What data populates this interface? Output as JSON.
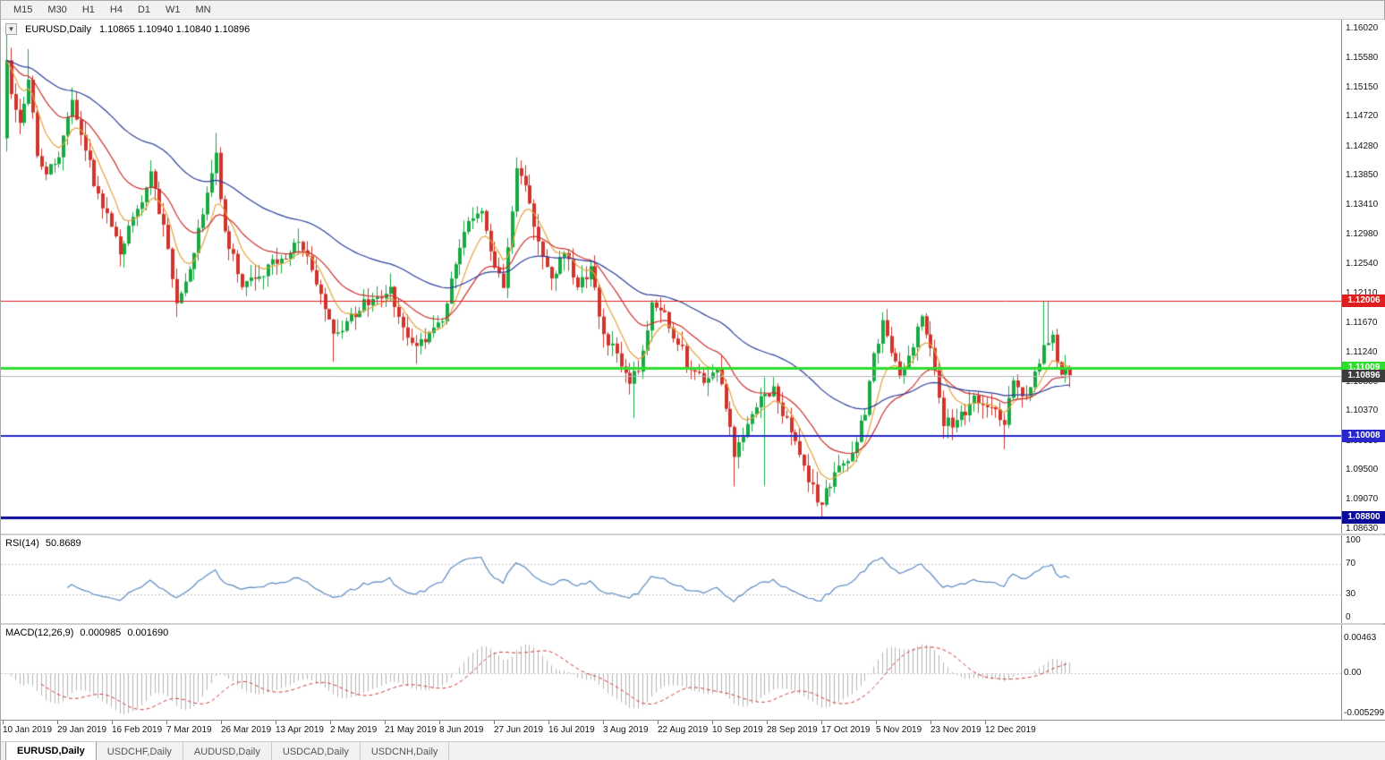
{
  "toolbar": {
    "timeframes": [
      "M15",
      "M30",
      "H1",
      "H4",
      "D1",
      "W1",
      "MN"
    ]
  },
  "chart_title": {
    "symbol": "EURUSD,Daily",
    "ohlc": "1.10865 1.10940 1.10840 1.10896",
    "collapse_icon": "▼"
  },
  "price_scale": {
    "labels": [
      "1.16020",
      "1.15580",
      "1.15150",
      "1.14720",
      "1.14280",
      "1.13850",
      "1.13410",
      "1.12980",
      "1.12540",
      "1.12110",
      "1.11670",
      "1.11240",
      "1.10800",
      "1.10370",
      "1.09930",
      "1.09500",
      "1.09070",
      "1.08630"
    ]
  },
  "hlines": [
    {
      "price": 1.12006,
      "label": "1.12006",
      "color": "#dd1f1f",
      "width": 1
    },
    {
      "price": 1.11009,
      "label": "1.11009",
      "color": "#2fdd2f",
      "width": 3
    },
    {
      "price": 1.10008,
      "label": "1.10008",
      "color": "#2727cc",
      "width": 2
    },
    {
      "price": 1.088,
      "label": "1.08800",
      "color": "#0a0a99",
      "width": 3
    }
  ],
  "current_price": {
    "value": 1.10896,
    "label": "1.10896",
    "line_color": "#b5b5b5",
    "box_color": "#3d3d3d"
  },
  "chart_data": {
    "type": "candlestick",
    "symbol": "EURUSD",
    "timeframe": "Daily",
    "current_bar": {
      "open": 1.10865,
      "high": 1.1094,
      "low": 1.1084,
      "close": 1.10896
    },
    "y_range": [
      1.0863,
      1.1602
    ],
    "x_labels": [
      "10 Jan 2019",
      "29 Jan 2019",
      "16 Feb 2019",
      "7 Mar 2019",
      "26 Mar 2019",
      "13 Apr 2019",
      "2 May 2019",
      "21 May 2019",
      "8 Jun 2019",
      "27 Jun 2019",
      "16 Jul 2019",
      "3 Aug 2019",
      "22 Aug 2019",
      "10 Sep 2019",
      "28 Sep 2019",
      "17 Oct 2019",
      "5 Nov 2019",
      "23 Nov 2019",
      "12 Dec 2019"
    ],
    "approx_close_anchors": [
      [
        0,
        1.1555
      ],
      [
        1,
        1.1505
      ],
      [
        3,
        1.1465
      ],
      [
        5,
        1.153
      ],
      [
        7,
        1.1415
      ],
      [
        9,
        1.1385
      ],
      [
        12,
        1.1412
      ],
      [
        15,
        1.1495
      ],
      [
        18,
        1.1425
      ],
      [
        20,
        1.137
      ],
      [
        23,
        1.133
      ],
      [
        26,
        1.127
      ],
      [
        29,
        1.1325
      ],
      [
        33,
        1.139
      ],
      [
        36,
        1.131
      ],
      [
        39,
        1.1195
      ],
      [
        42,
        1.1245
      ],
      [
        45,
        1.133
      ],
      [
        48,
        1.142
      ],
      [
        50,
        1.13
      ],
      [
        54,
        1.122
      ],
      [
        58,
        1.1235
      ],
      [
        63,
        1.1262
      ],
      [
        67,
        1.129
      ],
      [
        71,
        1.1225
      ],
      [
        75,
        1.1148
      ],
      [
        79,
        1.1178
      ],
      [
        84,
        1.1202
      ],
      [
        88,
        1.1218
      ],
      [
        91,
        1.1162
      ],
      [
        94,
        1.1132
      ],
      [
        97,
        1.1152
      ],
      [
        100,
        1.117
      ],
      [
        103,
        1.1255
      ],
      [
        106,
        1.132
      ],
      [
        109,
        1.1332
      ],
      [
        112,
        1.1248
      ],
      [
        114,
        1.1222
      ],
      [
        117,
        1.1398
      ],
      [
        119,
        1.1372
      ],
      [
        122,
        1.1288
      ],
      [
        125,
        1.1232
      ],
      [
        128,
        1.1272
      ],
      [
        131,
        1.1218
      ],
      [
        134,
        1.1252
      ],
      [
        137,
        1.1152
      ],
      [
        140,
        1.112
      ],
      [
        143,
        1.1078
      ],
      [
        145,
        1.1092
      ],
      [
        148,
        1.12
      ],
      [
        151,
        1.1182
      ],
      [
        154,
        1.1138
      ],
      [
        157,
        1.1098
      ],
      [
        160,
        1.1082
      ],
      [
        163,
        1.1098
      ],
      [
        165,
        1.1038
      ],
      [
        167,
        1.0972
      ],
      [
        169,
        1.1002
      ],
      [
        172,
        1.1042
      ],
      [
        174,
        1.1062
      ],
      [
        176,
        1.1072
      ],
      [
        178,
        1.1032
      ],
      [
        181,
        1.0992
      ],
      [
        184,
        1.0932
      ],
      [
        187,
        1.0898
      ],
      [
        189,
        1.0928
      ],
      [
        192,
        1.0962
      ],
      [
        195,
        1.0992
      ],
      [
        197,
        1.1032
      ],
      [
        199,
        1.1122
      ],
      [
        201,
        1.1172
      ],
      [
        203,
        1.1122
      ],
      [
        205,
        1.1088
      ],
      [
        208,
        1.1132
      ],
      [
        210,
        1.1176
      ],
      [
        212,
        1.1128
      ],
      [
        215,
        1.1018
      ],
      [
        218,
        1.1024
      ],
      [
        222,
        1.1058
      ],
      [
        226,
        1.1042
      ],
      [
        229,
        1.1018
      ],
      [
        231,
        1.108
      ],
      [
        234,
        1.1062
      ],
      [
        238,
        1.1132
      ],
      [
        240,
        1.1148
      ],
      [
        242,
        1.1092
      ],
      [
        244,
        1.10896
      ]
    ],
    "spikes": [
      {
        "i": 0,
        "h": 1.1598
      },
      {
        "i": 5,
        "h": 1.1572
      },
      {
        "i": 15,
        "h": 1.1515
      },
      {
        "i": 39,
        "l": 1.1176
      },
      {
        "i": 48,
        "h": 1.1448
      },
      {
        "i": 75,
        "l": 1.111
      },
      {
        "i": 94,
        "l": 1.1107
      },
      {
        "i": 117,
        "h": 1.1412
      },
      {
        "i": 144,
        "l": 1.1027
      },
      {
        "i": 167,
        "l": 1.0926
      },
      {
        "i": 174,
        "l": 1.0927,
        "h": 1.1087
      },
      {
        "i": 187,
        "l": 1.0879
      },
      {
        "i": 201,
        "h": 1.1179
      },
      {
        "i": 210,
        "h": 1.118
      },
      {
        "i": 229,
        "l": 1.0981
      },
      {
        "i": 238,
        "h": 1.12
      },
      {
        "i": 239,
        "h": 1.1199
      }
    ],
    "render": {
      "count": 245,
      "noise": 0.0012,
      "wick": 0.002,
      "seed": 5
    },
    "overlays": [
      {
        "type": "ema",
        "period": 8,
        "color": "#e2a33c"
      },
      {
        "type": "ema",
        "period": 21,
        "color": "#cc2f2f"
      },
      {
        "type": "ema",
        "period": 55,
        "color": "#2c3e9c"
      }
    ],
    "colors": {
      "up": "#18a943",
      "down": "#d0342c",
      "background": "#ffffff"
    }
  },
  "rsi": {
    "label": "RSI(14)",
    "value": "50.8689",
    "period": 14,
    "levels": [
      70,
      30
    ],
    "scale_labels": [
      "100",
      "70",
      "30",
      "0"
    ],
    "range": [
      0,
      100
    ],
    "line_color": "#5b8ac2",
    "level_color": "#c9c9c9"
  },
  "macd": {
    "label": "MACD(12,26,9)",
    "value_main": "0.000985",
    "value_signal": "0.001690",
    "fast": 12,
    "slow": 26,
    "signal": 9,
    "scale_labels": [
      "0.00463",
      "0.00",
      "-0.005299"
    ],
    "hist_color": "#b5b5b5",
    "signal_color": "#cc3a3a",
    "level_color": "#c9c9c9"
  },
  "tabs": [
    "EURUSD,Daily",
    "USDCHF,Daily",
    "AUDUSD,Daily",
    "USDCAD,Daily",
    "USDCNH,Daily"
  ],
  "active_tab": "EURUSD,Daily"
}
